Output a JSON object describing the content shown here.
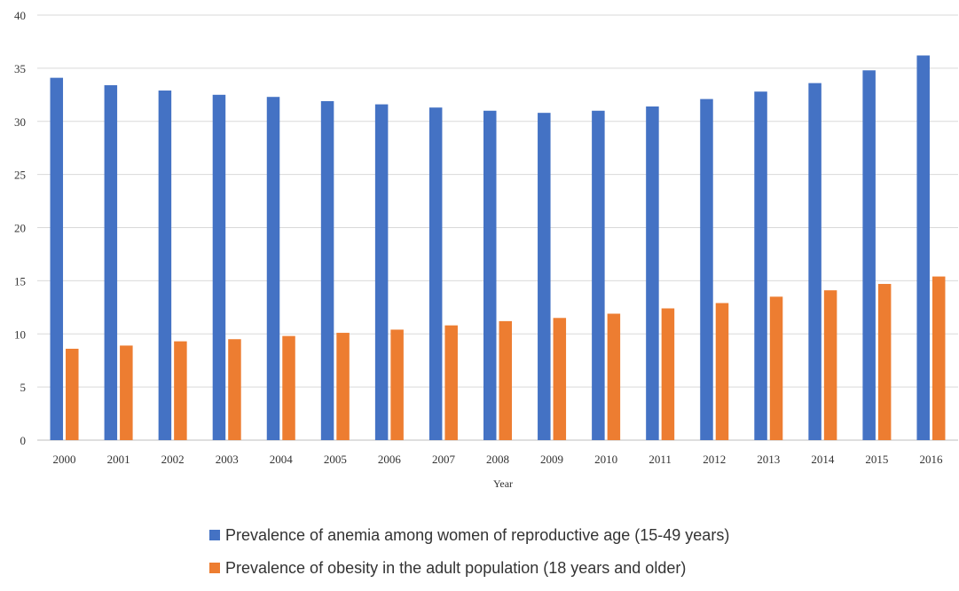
{
  "chart_data": {
    "type": "bar",
    "title": "",
    "xlabel": "Year",
    "ylabel": "",
    "ylim": [
      0,
      40
    ],
    "yticks": [
      0,
      5,
      10,
      15,
      20,
      25,
      30,
      35,
      40
    ],
    "grid": true,
    "legend_position": "bottom",
    "categories": [
      "2000",
      "2001",
      "2002",
      "2003",
      "2004",
      "2005",
      "2006",
      "2007",
      "2008",
      "2009",
      "2010",
      "2011",
      "2012",
      "2013",
      "2014",
      "2015",
      "2016"
    ],
    "series": [
      {
        "name": "Prevalence of anemia among women of reproductive age (15-49 years)",
        "color": "#4472C4",
        "values": [
          34.1,
          33.4,
          32.9,
          32.5,
          32.3,
          31.9,
          31.6,
          31.3,
          31.0,
          30.8,
          31.0,
          31.4,
          32.1,
          32.8,
          33.6,
          34.8,
          36.2
        ]
      },
      {
        "name": "Prevalence of obesity in the adult population (18 years and older)",
        "color": "#ED7D31",
        "values": [
          8.6,
          8.9,
          9.3,
          9.5,
          9.8,
          10.1,
          10.4,
          10.8,
          11.2,
          11.5,
          11.9,
          12.4,
          12.9,
          13.5,
          14.1,
          14.7,
          15.4
        ]
      }
    ]
  }
}
